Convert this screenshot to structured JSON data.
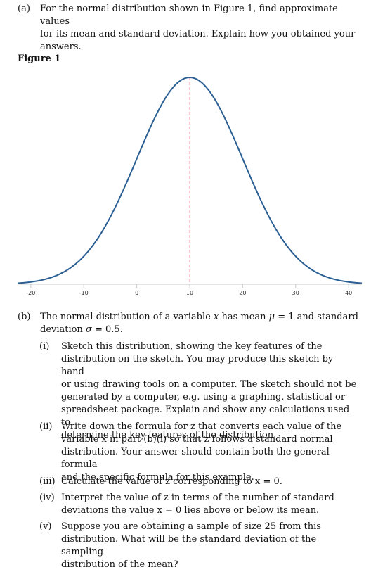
{
  "part_a": {
    "label": "(a)",
    "lines": [
      "For the normal distribution shown in Figure 1, find approximate values",
      "for its mean and standard deviation. Explain how you obtained your",
      "answers."
    ]
  },
  "figure_title": "Figure 1",
  "chart_data": {
    "type": "line",
    "title": "",
    "xlabel": "",
    "ylabel": "",
    "xlim": [
      -22.5,
      42.5
    ],
    "x_ticks": [
      -20,
      -10,
      0,
      10,
      20,
      30,
      40
    ],
    "x_tick_labels": [
      "-20",
      "-10",
      "0",
      "10",
      "20",
      "30",
      "40"
    ],
    "mean": 10,
    "sd": 10,
    "mean_line": {
      "x": 10,
      "style": "dashed",
      "color": "#f2a0ae"
    },
    "curve_color": "#2b5f93",
    "series": [
      {
        "x": [
          -22.5,
          -20,
          -15,
          -10,
          -5,
          0,
          5,
          10,
          15,
          20,
          25,
          30,
          35,
          40,
          42.5
        ],
        "values": [
          0.0007,
          0.0018,
          0.0088,
          0.027,
          0.0648,
          0.121,
          0.176,
          0.1995,
          0.176,
          0.121,
          0.0648,
          0.027,
          0.0088,
          0.0018,
          0.0007
        ]
      }
    ],
    "grid": false
  },
  "part_b": {
    "label": "(b)",
    "line1_pre": "The normal distribution of a variable ",
    "var_x": "x",
    "line1_mid": " has mean ",
    "mu": "μ",
    "line1_post": " = 1 and standard",
    "line2_pre": "deviation ",
    "sigma": "σ",
    "line2_post": " = 0.5.",
    "items": [
      {
        "label": "(i)",
        "lines": [
          "Sketch this distribution, showing the key features of the",
          "distribution on the sketch. You may produce this sketch by hand",
          "or using drawing tools on a computer. The sketch should not be",
          "generated by a computer, e.g. using a graphing, statistical or",
          "spreadsheet package. Explain and show any calculations used to",
          "determine the key features of the distribution."
        ]
      },
      {
        "label": "(ii)",
        "lines": [
          "Write down the formula for z that converts each value of the",
          "variable x in part (b)(i) so that z follows a standard normal",
          "distribution. Your answer should contain both the general formula",
          "and the specific formula for this example."
        ]
      },
      {
        "label": "(iii)",
        "lines": [
          "Calculate the value of z corresponding to x = 0."
        ]
      },
      {
        "label": "(iv)",
        "lines": [
          "Interpret the value of z in terms of the number of standard",
          "deviations the value x = 0 lies above or below its mean."
        ]
      },
      {
        "label": "(v)",
        "lines": [
          "Suppose you are obtaining a sample of size 25 from this",
          "distribution. What will be the standard deviation of the sampling",
          "distribution of the mean?"
        ]
      }
    ]
  }
}
